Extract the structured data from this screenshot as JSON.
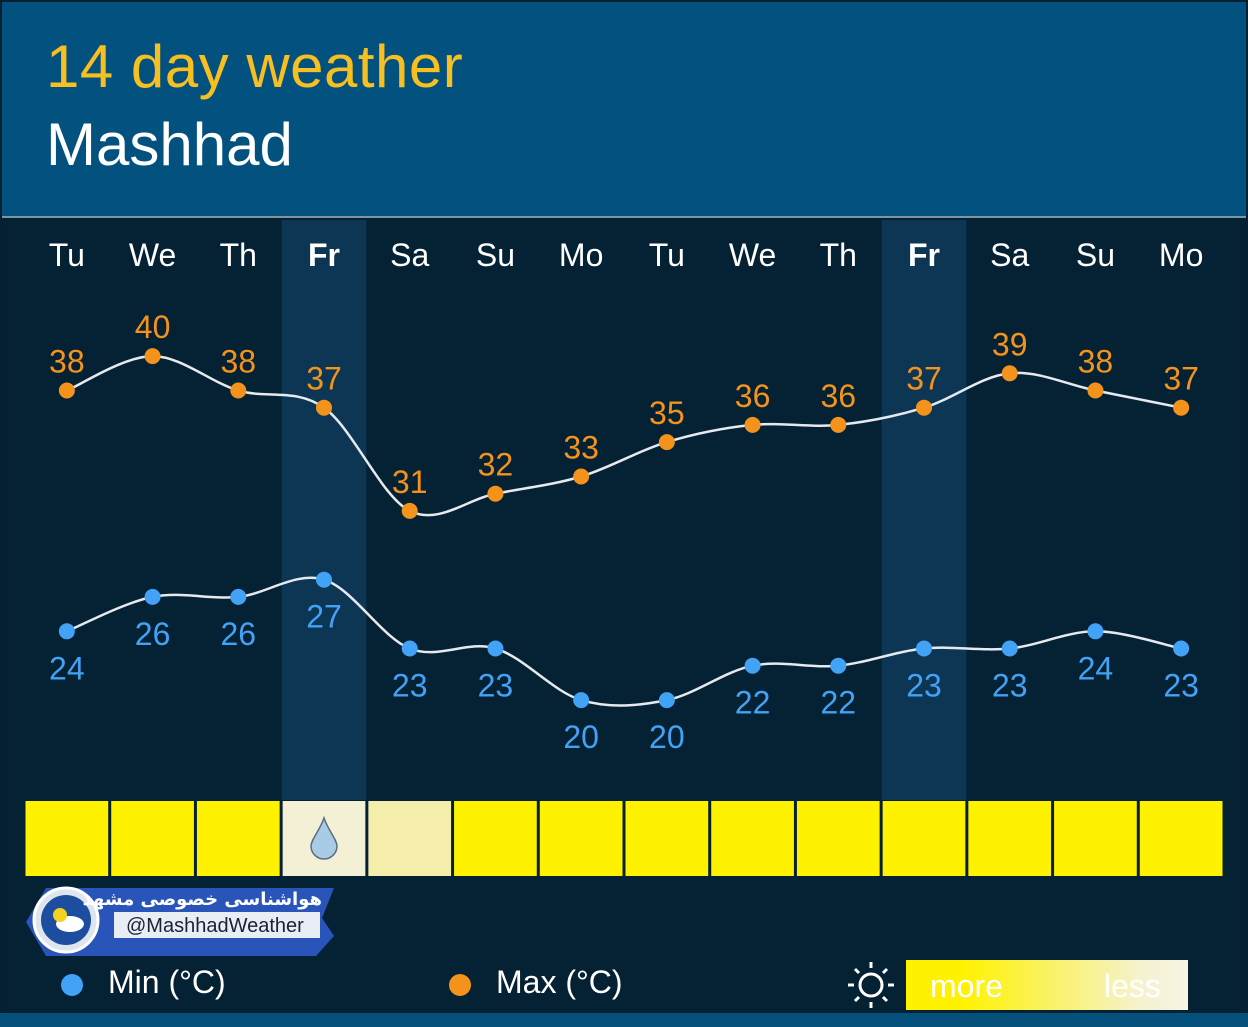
{
  "header": {
    "title": "14 day weather",
    "city": "Mashhad"
  },
  "chart_data": {
    "type": "line",
    "categories": [
      "Tu",
      "We",
      "Th",
      "Fr",
      "Sa",
      "Su",
      "Mo",
      "Tu",
      "We",
      "Th",
      "Fr",
      "Sa",
      "Su",
      "Mo"
    ],
    "highlighted_days": [
      "Fr"
    ],
    "series": [
      {
        "name": "Max (°C)",
        "color": "#f3931c",
        "values": [
          38,
          40,
          38,
          37,
          31,
          32,
          33,
          35,
          36,
          36,
          37,
          39,
          38,
          37
        ]
      },
      {
        "name": "Min (°C)",
        "color": "#42a2f5",
        "values": [
          24,
          26,
          26,
          27,
          23,
          23,
          20,
          20,
          22,
          22,
          23,
          23,
          24,
          23
        ]
      }
    ],
    "sunshine": [
      "more",
      "more",
      "more",
      "rain",
      "less",
      "more",
      "more",
      "more",
      "more",
      "more",
      "more",
      "more",
      "more",
      "more"
    ],
    "grid": false
  },
  "watermark": {
    "text_fa": "هواشناسی خصوصی مشهد",
    "handle": "@MashhadWeather"
  },
  "legend": {
    "min_label": "Min (°C)",
    "max_label": "Max (°C)",
    "more_label": "more",
    "less_label": "less",
    "min_color": "#42a2f5",
    "max_color": "#f3931c",
    "sun_icon": "sun-icon"
  },
  "colors": {
    "header_bg": "#03517f",
    "title": "#f7bf1f",
    "sun_more": "#fff200",
    "sun_less": "#f5eeaa",
    "rain_cell": "#f3f0d6"
  }
}
